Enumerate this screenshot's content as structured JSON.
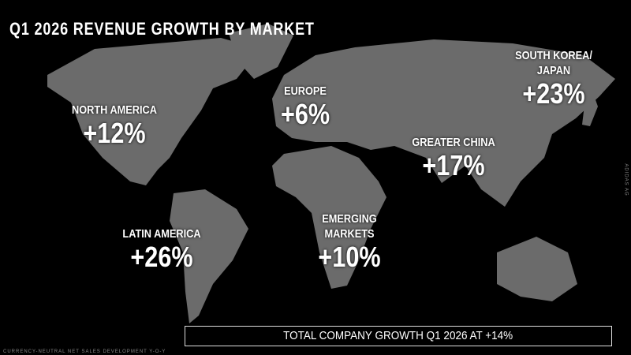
{
  "title": "Q1 2026 REVENUE GROWTH BY MARKET",
  "regions": [
    {
      "name": "NORTH AMERICA",
      "growth": 12,
      "growth_label": "+12%"
    },
    {
      "name": "EUROPE",
      "growth": 6,
      "growth_label": "+6%"
    },
    {
      "name": "SOUTH KOREA/ JAPAN",
      "growth": 23,
      "growth_label": "+23%"
    },
    {
      "name": "GREATER CHINA",
      "growth": 17,
      "growth_label": "+17%"
    },
    {
      "name": "EMERGING MARKETS",
      "growth": 10,
      "growth_label": "+10%"
    },
    {
      "name": "LATIN AMERICA",
      "growth": 26,
      "growth_label": "+26%"
    }
  ],
  "total": "TOTAL COMPANY GROWTH Q1 2026 AT +14%",
  "footnote": "CURRENCY-NEUTRAL NET SALES DEVELOPMENT Y-O-Y",
  "side_note": "ADIDAS AG"
}
